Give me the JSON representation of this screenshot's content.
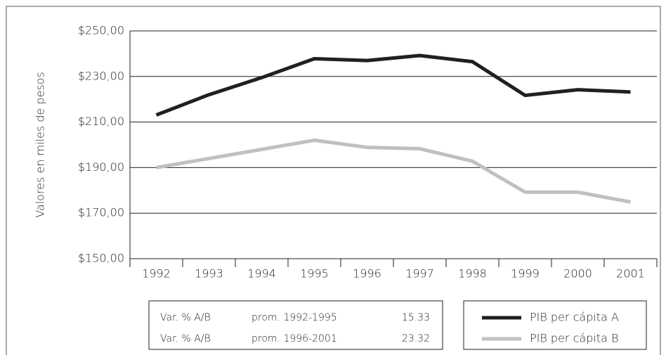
{
  "chart_data": {
    "type": "line",
    "y_label": "Valores en miles de pesos",
    "categories": [
      "1992",
      "1993",
      "1994",
      "1995",
      "1996",
      "1997",
      "1998",
      "1999",
      "2000",
      "2001"
    ],
    "series": [
      {
        "name": "PIB per cápita A",
        "color": "#231f20",
        "values": [
          213.1,
          222,
          229.5,
          237.8,
          237,
          239.2,
          236.5,
          221.7,
          224.2,
          223.2
        ]
      },
      {
        "name": "PIB per cápita B",
        "color": "#c0c0c0",
        "values": [
          190,
          194,
          198,
          202,
          198.9,
          198.3,
          192.8,
          179.2,
          179.2,
          174.9
        ]
      }
    ],
    "ylim": [
      150,
      250
    ],
    "yticks": [
      {
        "value": 150,
        "label": "$150,00"
      },
      {
        "value": 170,
        "label": "$170,00"
      },
      {
        "value": 190,
        "label": "$190,00"
      },
      {
        "value": 210,
        "label": "$210,00"
      },
      {
        "value": 230,
        "label": "$230,00"
      },
      {
        "value": 250,
        "label": "$250,00"
      }
    ],
    "grid": true,
    "summary_table": {
      "rows": [
        [
          "Var. % A/B",
          "prom. 1992-1995",
          "15.33"
        ],
        [
          "Var. % A/B",
          "prom. 1996-2001",
          "23.32"
        ]
      ]
    }
  }
}
